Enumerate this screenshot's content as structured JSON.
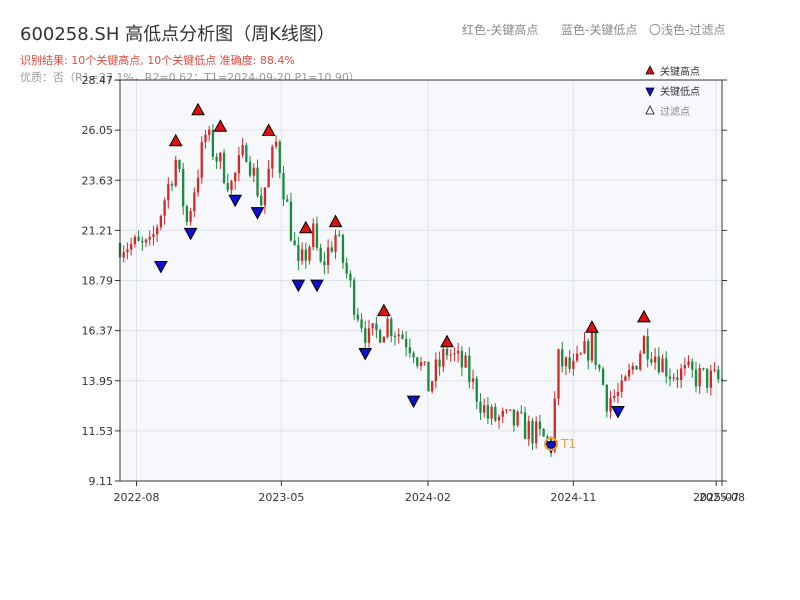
{
  "header": {
    "title": "600258.SH 高低点分析图（周K线图）",
    "subtitle": "识别结果: 10个关键高点, 10个关键低点   准确度: 88.4%",
    "quality": "优质：否（R1=37.1%，R2=0.62；T1=2024-09-20 P1=10.90）"
  },
  "top_legend": {
    "red": "红色-关键高点",
    "blue": "蓝色-关键低点",
    "light": "〇浅色-过滤点"
  },
  "colors": {
    "up": "#d62728",
    "down": "#1a8a3c",
    "high_marker": "#e01010",
    "low_marker": "#1010d0",
    "t1": "#f0a030",
    "plot_bg": "#f6f8fb",
    "grid": "#dfe3ea"
  },
  "chart_data": {
    "type": "candlestick",
    "title": "600258.SH 高低点分析图（周K线图）",
    "x_range": [
      "2022-07-01",
      "2025-08-08"
    ],
    "x_ticks": [
      {
        "date": "2022-08-01",
        "label": "2022-08"
      },
      {
        "date": "2023-05-01",
        "label": "2023-05"
      },
      {
        "date": "2024-02-01",
        "label": "2024-02"
      },
      {
        "date": "2024-11-01",
        "label": "2024-11"
      },
      {
        "date": "2025-07-28",
        "label": "2025-07"
      },
      {
        "date": "2025-08-08",
        "label": "2025-08"
      }
    ],
    "ylim": [
      9.11,
      28.47
    ],
    "y_ticks": [
      9.11,
      11.53,
      13.95,
      16.37,
      18.79,
      21.21,
      23.63,
      26.05,
      28.47
    ],
    "grid": true,
    "legend": {
      "position": "top-right",
      "entries": [
        "关键高点",
        "关键低点",
        "过滤点"
      ]
    },
    "series_waypoints": [
      [
        "2022-07-01",
        20.6
      ],
      [
        "2022-08-26",
        20.3
      ],
      [
        "2022-10-14",
        24.6
      ],
      [
        "2022-11-04",
        21.6
      ],
      [
        "2022-12-09",
        25.8
      ],
      [
        "2023-01-27",
        23.4
      ],
      [
        "2023-02-24",
        25.2
      ],
      [
        "2023-03-24",
        22.6
      ],
      [
        "2023-04-21",
        25.4
      ],
      [
        "2023-06-02",
        19.2
      ],
      [
        "2023-06-30",
        21.0
      ],
      [
        "2023-07-14",
        19.4
      ],
      [
        "2023-08-11",
        21.0
      ],
      [
        "2023-09-15",
        17.8
      ],
      [
        "2023-10-13",
        15.9
      ],
      [
        "2023-11-17",
        16.8
      ],
      [
        "2024-01-05",
        15.6
      ],
      [
        "2024-02-02",
        13.7
      ],
      [
        "2024-03-08",
        15.4
      ],
      [
        "2024-04-12",
        14.5
      ],
      [
        "2024-05-24",
        12.2
      ],
      [
        "2024-07-19",
        11.9
      ],
      [
        "2024-09-20",
        10.9
      ],
      [
        "2024-10-04",
        14.9
      ],
      [
        "2024-11-01",
        14.4
      ],
      [
        "2024-12-06",
        15.8
      ],
      [
        "2025-01-03",
        13.1
      ],
      [
        "2025-01-31",
        13.3
      ],
      [
        "2025-03-14",
        15.9
      ],
      [
        "2025-05-02",
        14.4
      ],
      [
        "2025-08-08",
        13.9
      ]
    ],
    "key_highs": [
      {
        "date": "2022-10-14",
        "price": 25.1
      },
      {
        "date": "2022-11-25",
        "price": 26.6
      },
      {
        "date": "2023-01-06",
        "price": 25.8
      },
      {
        "date": "2023-04-07",
        "price": 25.6
      },
      {
        "date": "2023-06-16",
        "price": 20.9
      },
      {
        "date": "2023-08-11",
        "price": 21.2
      },
      {
        "date": "2023-11-10",
        "price": 16.9
      },
      {
        "date": "2024-03-08",
        "price": 15.4
      },
      {
        "date": "2024-12-06",
        "price": 16.1
      },
      {
        "date": "2025-03-14",
        "price": 16.6
      }
    ],
    "key_lows": [
      {
        "date": "2022-09-16",
        "price": 19.9
      },
      {
        "date": "2022-11-11",
        "price": 21.5
      },
      {
        "date": "2023-02-03",
        "price": 23.1
      },
      {
        "date": "2023-03-17",
        "price": 22.5
      },
      {
        "date": "2023-06-02",
        "price": 19.0
      },
      {
        "date": "2023-07-07",
        "price": 19.0
      },
      {
        "date": "2023-10-06",
        "price": 15.7
      },
      {
        "date": "2024-01-05",
        "price": 13.4
      },
      {
        "date": "2024-09-20",
        "price": 11.2
      },
      {
        "date": "2025-01-24",
        "price": 12.9
      }
    ],
    "t1": {
      "date": "2024-09-20",
      "price": 10.9,
      "label": "T1"
    }
  }
}
